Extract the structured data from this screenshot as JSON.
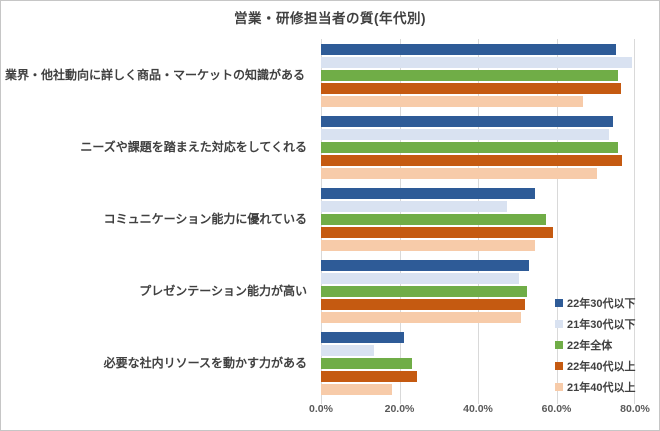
{
  "title": "営業・研修担当者の質(年代別)",
  "chart_data": {
    "type": "bar",
    "orientation": "horizontal",
    "title": "営業・研修担当者の質(年代別)",
    "categories": [
      "業界・他社動向に詳しく商品・マーケットの知識がある",
      "ニーズや課題を踏まえた対応をしてくれる",
      "コミュニケーション能力に優れている",
      "プレゼンテーション能力が高い",
      "必要な社内リソースを動かす力がある"
    ],
    "series": [
      {
        "name": "22年30代以下",
        "color": "#2E5B97",
        "values": [
          75.2,
          74.3,
          54.6,
          52.9,
          21.1
        ]
      },
      {
        "name": "21年30代以下",
        "color": "#D9E2F1",
        "values": [
          79.3,
          73.5,
          47.3,
          50.5,
          13.6
        ]
      },
      {
        "name": "22年全体",
        "color": "#70AD47",
        "values": [
          75.7,
          75.6,
          57.2,
          52.4,
          23.2
        ]
      },
      {
        "name": "22年40代以上",
        "color": "#C55A11",
        "values": [
          76.4,
          76.6,
          59.0,
          52.1,
          24.4
        ]
      },
      {
        "name": "21年40代以上",
        "color": "#F7CBA9",
        "values": [
          66.7,
          70.3,
          54.6,
          51.0,
          18.0
        ]
      }
    ],
    "x_axis": {
      "min": 0,
      "max": 80,
      "tick_labels": [
        "0.0%",
        "20.0%",
        "40.0%",
        "60.0%",
        "80.0%"
      ]
    },
    "grid": true,
    "legend_position": "right-bottom",
    "colors": {
      "title_text": "#404040",
      "category_text": "#404040",
      "axis_text": "#595959",
      "gridline": "#d9d9d9",
      "frame_border": "#c6c6c6",
      "background": "#ffffff"
    }
  }
}
